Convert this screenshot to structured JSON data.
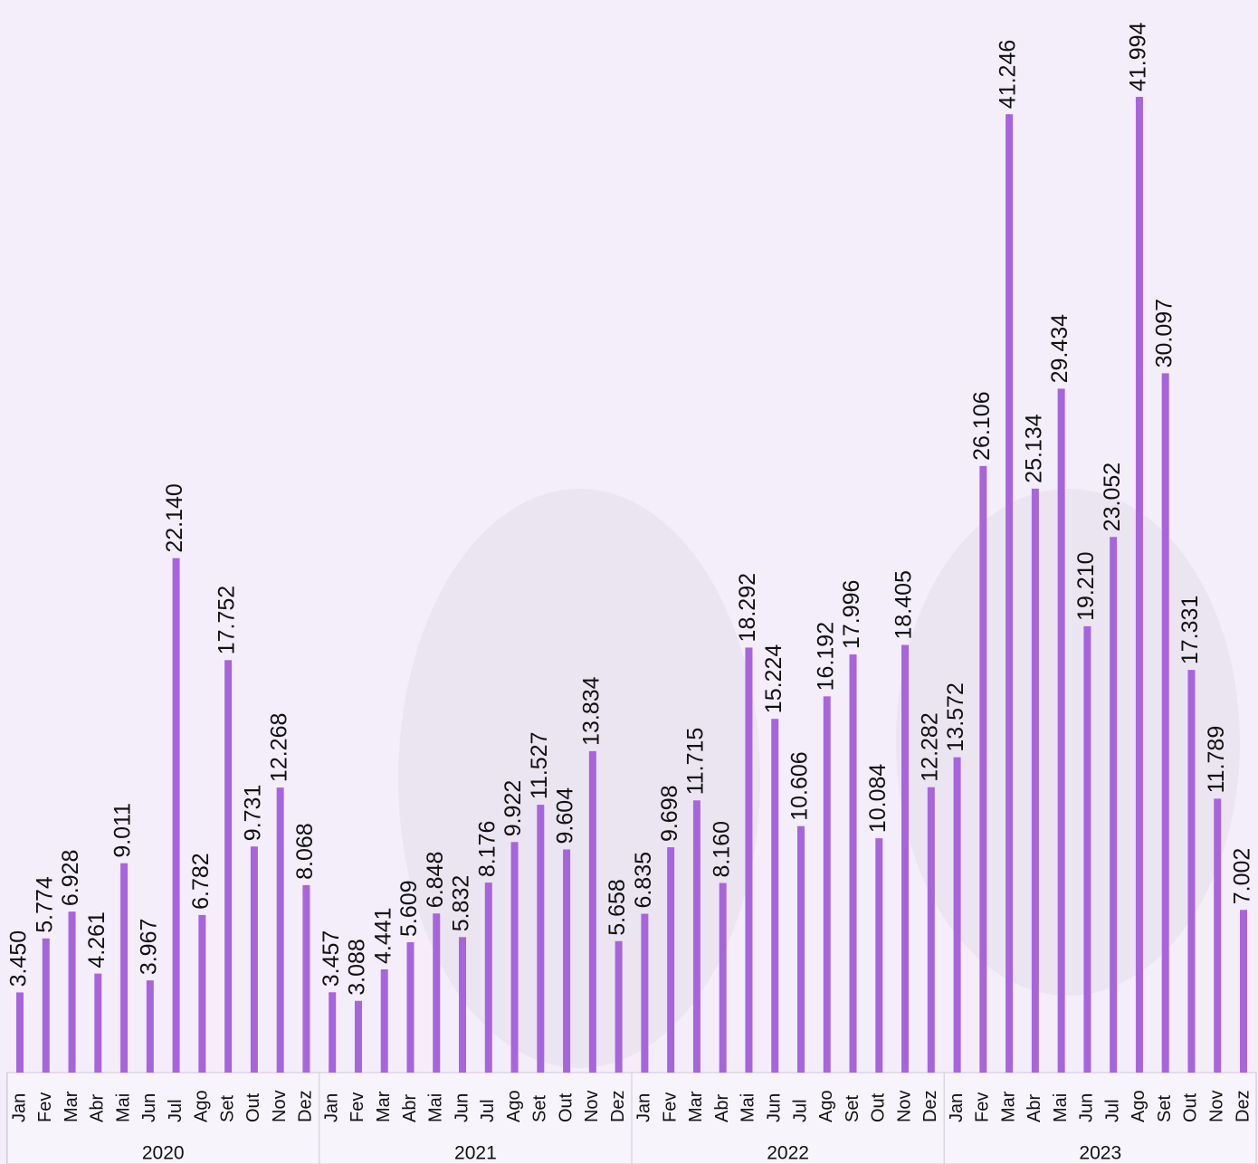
{
  "chart_data": {
    "type": "bar",
    "color": "#a864dc",
    "categories": [
      "Jan",
      "Fev",
      "Mar",
      "Abr",
      "Mai",
      "Jun",
      "Jul",
      "Ago",
      "Set",
      "Out",
      "Nov",
      "Dez",
      "Jan",
      "Fev",
      "Mar",
      "Abr",
      "Mai",
      "Jun",
      "Jul",
      "Ago",
      "Set",
      "Out",
      "Nov",
      "Dez",
      "Jan",
      "Fev",
      "Mar",
      "Abr",
      "Mai",
      "Jun",
      "Jul",
      "Ago",
      "Set",
      "Out",
      "Nov",
      "Dez",
      "Jan",
      "Fev",
      "Mar",
      "Abr",
      "Mai",
      "Jun",
      "Jul",
      "Ago",
      "Set",
      "Out",
      "Nov",
      "Dez"
    ],
    "groups": [
      "2020",
      "2021",
      "2022",
      "2023"
    ],
    "values": [
      3450,
      5774,
      6928,
      4261,
      9011,
      3967,
      22140,
      6782,
      17752,
      9731,
      12268,
      8068,
      3457,
      3088,
      4441,
      5609,
      6848,
      5832,
      8176,
      9922,
      11527,
      9604,
      13834,
      5658,
      6835,
      9698,
      11715,
      8160,
      18292,
      15224,
      10606,
      16192,
      17996,
      10084,
      18405,
      12282,
      13572,
      26106,
      41246,
      25134,
      29434,
      19210,
      23052,
      41994,
      30097,
      17331,
      11789,
      7002
    ],
    "value_labels": [
      "3.450",
      "5.774",
      "6.928",
      "4.261",
      "9.011",
      "3.967",
      "22.140",
      "6.782",
      "17.752",
      "9.731",
      "12.268",
      "8.068",
      "3.457",
      "3.088",
      "4.441",
      "5.609",
      "6.848",
      "5.832",
      "8.176",
      "9.922",
      "11.527",
      "9.604",
      "13.834",
      "5.658",
      "6.835",
      "9.698",
      "11.715",
      "8.160",
      "18.292",
      "15.224",
      "10.606",
      "16.192",
      "17.996",
      "10.084",
      "18.405",
      "12.282",
      "13.572",
      "26.106",
      "41.246",
      "25.134",
      "29.434",
      "19.210",
      "23.052",
      "41.994",
      "30.097",
      "17.331",
      "11.789",
      "7.002"
    ]
  }
}
